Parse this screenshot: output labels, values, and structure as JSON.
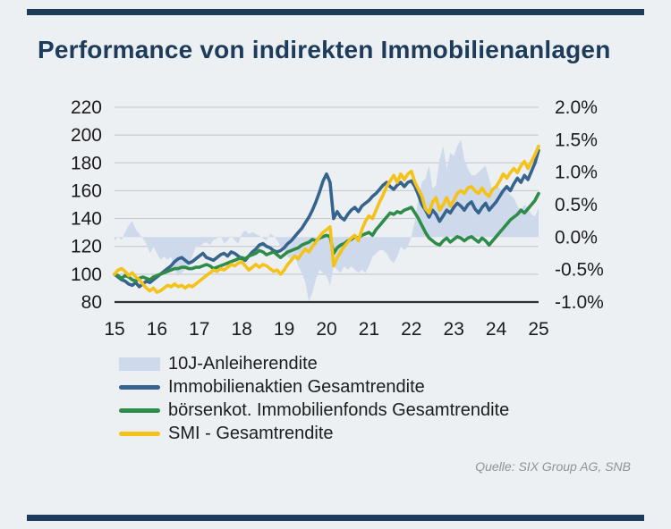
{
  "title": "Performance von indirekten Immobilienanlagen",
  "source": "Quelle: SIX Group AG, SNB",
  "colors": {
    "accent_navy": "#1d3c5c",
    "background": "#edf0f2",
    "gridline": "#c8ccd2",
    "axis_line": "#2d2f33",
    "tick_text": "#1b1c1e"
  },
  "chart_data": {
    "type": "line+area",
    "x_start": 2015,
    "x_end": 2025,
    "points_per_year": 12,
    "grid": "horizontal-only",
    "legend_position": "bottom-left",
    "x_axis": {
      "ticks": [
        {
          "label": "15",
          "value": 2015
        },
        {
          "label": "16",
          "value": 2016
        },
        {
          "label": "17",
          "value": 2017
        },
        {
          "label": "18",
          "value": 2018
        },
        {
          "label": "19",
          "value": 2019
        },
        {
          "label": "20",
          "value": 2020
        },
        {
          "label": "21",
          "value": 2021
        },
        {
          "label": "22",
          "value": 2022
        },
        {
          "label": "23",
          "value": 2023
        },
        {
          "label": "24",
          "value": 2024
        },
        {
          "label": "25",
          "value": 2025
        }
      ]
    },
    "left_axis": {
      "min": 80,
      "max": 220,
      "ticks": [
        {
          "label": "220",
          "value": 220
        },
        {
          "label": "200",
          "value": 200
        },
        {
          "label": "180",
          "value": 180
        },
        {
          "label": "160",
          "value": 160
        },
        {
          "label": "140",
          "value": 140
        },
        {
          "label": "120",
          "value": 120
        },
        {
          "label": "100",
          "value": 100
        },
        {
          "label": "80",
          "value": 80
        }
      ]
    },
    "right_axis": {
      "min": -1.0,
      "max": 2.0,
      "ticks": [
        {
          "label": "2.0%",
          "value": 2.0
        },
        {
          "label": "1.5%",
          "value": 1.5
        },
        {
          "label": "1.0%",
          "value": 1.0
        },
        {
          "label": "0.5%",
          "value": 0.5
        },
        {
          "label": "0.0%",
          "value": 0.0
        },
        {
          "label": "-0.5%",
          "value": -0.5
        },
        {
          "label": "-1.0%",
          "value": -1.0
        }
      ]
    },
    "area_series": {
      "name": "10J-Anleiherendite",
      "axis": "right",
      "color": "#cfd9ec",
      "baseline": 0.0,
      "values": [
        -0.06,
        0.01,
        -0.05,
        0.08,
        0.18,
        0.25,
        0.12,
        0.05,
        -0.02,
        -0.1,
        -0.25,
        -0.15,
        -0.25,
        -0.35,
        -0.3,
        -0.35,
        -0.3,
        -0.5,
        -0.6,
        -0.55,
        -0.5,
        -0.45,
        -0.3,
        -0.15,
        -0.15,
        -0.1,
        -0.08,
        -0.12,
        -0.05,
        -0.02,
        0.02,
        -0.1,
        -0.05,
        0.02,
        -0.05,
        -0.1,
        0.05,
        0.1,
        0.05,
        0.08,
        0.05,
        0.02,
        -0.02,
        -0.05,
        0.05,
        0.02,
        -0.05,
        -0.15,
        -0.2,
        -0.3,
        -0.35,
        -0.3,
        -0.45,
        -0.55,
        -0.7,
        -1.05,
        -0.85,
        -0.65,
        -0.5,
        -0.55,
        -0.6,
        -0.75,
        -0.45,
        -0.5,
        -0.55,
        -0.45,
        -0.5,
        -0.45,
        -0.5,
        -0.55,
        -0.5,
        -0.55,
        -0.45,
        -0.3,
        -0.25,
        -0.2,
        -0.2,
        -0.25,
        -0.35,
        -0.4,
        -0.3,
        -0.15,
        -0.2,
        -0.15,
        0.02,
        0.25,
        0.6,
        0.85,
        0.9,
        1.1,
        0.75,
        0.8,
        1.2,
        1.4,
        1.05,
        1.3,
        1.25,
        1.4,
        1.5,
        1.2,
        1.05,
        0.95,
        0.95,
        1.0,
        1.05,
        1.1,
        0.9,
        0.7,
        0.8,
        0.75,
        0.7,
        0.72,
        0.65,
        0.6,
        0.48,
        0.42,
        0.5,
        0.45,
        0.35,
        0.32,
        0.45
      ]
    },
    "series": [
      {
        "name": "Immobilienaktien Gesamtrendite",
        "axis": "left",
        "color": "#36648e",
        "values": [
          100,
          98,
          96,
          95,
          93,
          92,
          94,
          91,
          93,
          95,
          94,
          96,
          98,
          100,
          102,
          104,
          106,
          109,
          111,
          112,
          110,
          108,
          109,
          111,
          113,
          115,
          112,
          111,
          110,
          112,
          114,
          115,
          113,
          116,
          115,
          113,
          111,
          110,
          113,
          116,
          118,
          121,
          122,
          120,
          119,
          117,
          116,
          117,
          119,
          122,
          124,
          127,
          130,
          133,
          137,
          141,
          146,
          152,
          159,
          167,
          172,
          166,
          140,
          145,
          141,
          139,
          143,
          146,
          148,
          145,
          149,
          151,
          153,
          156,
          158,
          161,
          164,
          166,
          163,
          161,
          164,
          166,
          163,
          166,
          167,
          163,
          157,
          150,
          146,
          141,
          146,
          143,
          138,
          142,
          146,
          144,
          148,
          151,
          149,
          146,
          150,
          152,
          147,
          144,
          148,
          151,
          146,
          149,
          152,
          156,
          160,
          163,
          160,
          165,
          169,
          166,
          171,
          168,
          174,
          180,
          189
        ]
      },
      {
        "name": "börsenkot. Immobilienfonds Gesamtrendite",
        "axis": "left",
        "color": "#2e8c49",
        "values": [
          100,
          99,
          97,
          99,
          98,
          96,
          95,
          97,
          98,
          97,
          96,
          98,
          99,
          100,
          101,
          102,
          103,
          104,
          104,
          105,
          105,
          104,
          104,
          105,
          105,
          106,
          107,
          106,
          104,
          105,
          106,
          107,
          108,
          109,
          110,
          111,
          112,
          111,
          113,
          114,
          115,
          117,
          116,
          114,
          115,
          116,
          114,
          112,
          114,
          116,
          117,
          118,
          119,
          121,
          122,
          123,
          125,
          124,
          126,
          127,
          128,
          127,
          115,
          119,
          121,
          122,
          124,
          125,
          127,
          126,
          128,
          129,
          130,
          128,
          132,
          135,
          138,
          141,
          144,
          143,
          145,
          144,
          146,
          147,
          148,
          144,
          140,
          135,
          130,
          126,
          124,
          122,
          121,
          124,
          126,
          123,
          125,
          127,
          126,
          124,
          126,
          127,
          125,
          123,
          126,
          124,
          121,
          124,
          127,
          130,
          133,
          136,
          139,
          141,
          143,
          146,
          144,
          147,
          150,
          153,
          158
        ]
      },
      {
        "name": "SMI - Gesamtrendite",
        "axis": "left",
        "color": "#f4c218",
        "values": [
          100,
          103,
          104,
          102,
          99,
          101,
          98,
          96,
          93,
          90,
          88,
          90,
          87,
          88,
          90,
          92,
          91,
          93,
          91,
          92,
          90,
          92,
          91,
          93,
          95,
          97,
          99,
          101,
          103,
          102,
          104,
          103,
          105,
          107,
          106,
          108,
          109,
          106,
          103,
          105,
          107,
          105,
          107,
          106,
          104,
          102,
          103,
          100,
          103,
          107,
          110,
          113,
          111,
          115,
          118,
          116,
          120,
          123,
          127,
          130,
          132,
          134,
          106,
          112,
          116,
          120,
          123,
          126,
          128,
          124,
          132,
          138,
          142,
          140,
          146,
          152,
          157,
          163,
          167,
          171,
          166,
          172,
          168,
          172,
          174,
          166,
          161,
          156,
          147,
          144,
          152,
          155,
          146,
          150,
          155,
          149,
          153,
          158,
          160,
          158,
          162,
          163,
          160,
          158,
          162,
          158,
          156,
          161,
          163,
          167,
          172,
          169,
          173,
          176,
          173,
          178,
          181,
          176,
          181,
          186,
          192
        ]
      }
    ]
  },
  "legend": {
    "note": "labels bound from chart_data series names"
  }
}
